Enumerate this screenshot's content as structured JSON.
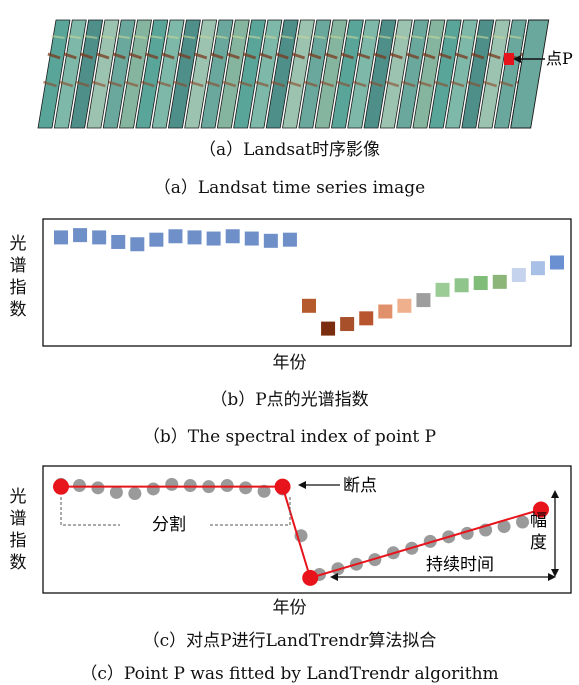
{
  "panel_a": {
    "point_label": "点P",
    "caption_cn": "（a）Landsat时序影像",
    "caption_en": "（a）Landsat time series image",
    "colors": {
      "point": "#e8141c",
      "frame_edge": "#1a1a1a"
    }
  },
  "panel_b": {
    "ylabel": [
      "光",
      "谱",
      "指",
      "数"
    ],
    "xlabel": "年份",
    "caption_cn": "（b）P点的光谱指数",
    "caption_en": "（b）The spectral index of point P",
    "chart_data": {
      "type": "scatter",
      "title": "",
      "xlabel": "年份",
      "ylabel": "光谱指数",
      "grid": false,
      "legend": "none",
      "x": [
        1,
        2,
        3,
        4,
        5,
        6,
        7,
        8,
        9,
        10,
        11,
        12,
        13,
        14,
        15,
        16,
        17,
        18,
        19,
        20,
        21,
        22,
        23,
        24,
        25,
        26,
        27
      ],
      "y": [
        0.9,
        0.92,
        0.9,
        0.86,
        0.84,
        0.88,
        0.91,
        0.9,
        0.89,
        0.91,
        0.89,
        0.87,
        0.88,
        0.3,
        0.1,
        0.14,
        0.19,
        0.25,
        0.3,
        0.35,
        0.44,
        0.48,
        0.5,
        0.51,
        0.57,
        0.63,
        0.68
      ],
      "colors": [
        "#6f8fc8",
        "#6f8fc8",
        "#6f8fc8",
        "#6f8fc8",
        "#6f8fc8",
        "#6f8fc8",
        "#6f8fc8",
        "#6f8fc8",
        "#6f8fc8",
        "#6f8fc8",
        "#6f8fc8",
        "#6f8fc8",
        "#6f8fc8",
        "#b55a2c",
        "#7a2e0f",
        "#a7502a",
        "#b9552e",
        "#e0906a",
        "#efb08e",
        "#9e9e9e",
        "#9ccc95",
        "#8fc48a",
        "#7fbd78",
        "#8cb57a",
        "#c5d4ec",
        "#a8bfe6",
        "#6a90d2"
      ]
    }
  },
  "panel_c": {
    "ylabel": [
      "光",
      "谱",
      "指",
      "数"
    ],
    "xlabel": "年份",
    "breakpoint_label": "断点",
    "segment_label": "分割",
    "duration_label": "持续时间",
    "magnitude_label": [
      "幅",
      "度"
    ],
    "caption_cn": "（c）对点P进行LandTrendr算法拟合",
    "caption_en": "（c）Point P was fitted by LandTrendr algorithm",
    "chart_data": {
      "type": "scatter",
      "title": "",
      "xlabel": "年份",
      "ylabel": "光谱指数",
      "grid": false,
      "legend": "none",
      "x": [
        1,
        2,
        3,
        4,
        5,
        6,
        7,
        8,
        9,
        10,
        11,
        12,
        13,
        14,
        15,
        16,
        17,
        18,
        19,
        20,
        21,
        22,
        23,
        24,
        25,
        26,
        27
      ],
      "y": [
        0.9,
        0.89,
        0.87,
        0.83,
        0.82,
        0.86,
        0.9,
        0.89,
        0.88,
        0.89,
        0.87,
        0.84,
        0.86,
        0.45,
        0.11,
        0.16,
        0.2,
        0.24,
        0.3,
        0.34,
        0.4,
        0.44,
        0.47,
        0.5,
        0.53,
        0.57,
        0.66
      ],
      "fit_vertices": [
        {
          "x": 1,
          "y": 0.88
        },
        {
          "x": 13,
          "y": 0.88
        },
        {
          "x": 14.5,
          "y": 0.08
        },
        {
          "x": 27,
          "y": 0.68
        }
      ],
      "point_color": "#9a9a9a",
      "fit_color": "#e8141c"
    }
  }
}
